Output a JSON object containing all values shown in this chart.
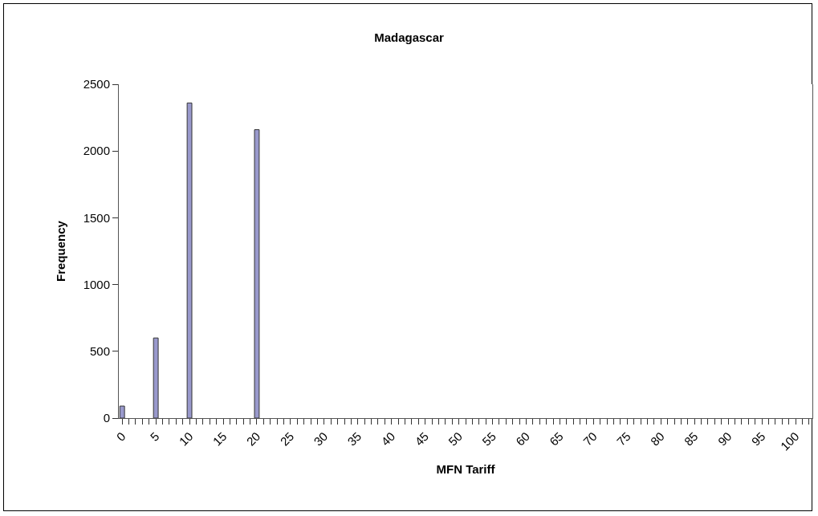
{
  "chart_data": {
    "type": "bar",
    "title": "Madagascar",
    "xlabel": "MFN Tariff",
    "ylabel": "Frequency",
    "categories": [
      "0",
      null,
      null,
      null,
      null,
      "5",
      null,
      null,
      null,
      null,
      "10",
      null,
      null,
      null,
      null,
      "15",
      null,
      null,
      null,
      null,
      "20",
      null,
      null,
      null,
      null,
      "25",
      null,
      null,
      null,
      null,
      "30",
      null,
      null,
      null,
      null,
      "35",
      null,
      null,
      null,
      null,
      "40",
      null,
      null,
      null,
      null,
      "45",
      null,
      null,
      null,
      null,
      "50",
      null,
      null,
      null,
      null,
      "55",
      null,
      null,
      null,
      null,
      "60",
      null,
      null,
      null,
      null,
      "65",
      null,
      null,
      null,
      null,
      "70",
      null,
      null,
      null,
      null,
      "75",
      null,
      null,
      null,
      null,
      "80",
      null,
      null,
      null,
      null,
      "85",
      null,
      null,
      null,
      null,
      "90",
      null,
      null,
      null,
      null,
      "95",
      null,
      null,
      null,
      null,
      "100",
      null,
      null
    ],
    "values": [
      90,
      0,
      0,
      0,
      0,
      600,
      0,
      0,
      0,
      0,
      2360,
      0,
      0,
      0,
      0,
      0,
      0,
      0,
      0,
      0,
      2160,
      0,
      0,
      0,
      0,
      0,
      0,
      0,
      0,
      0,
      0,
      0,
      0,
      0,
      0,
      0,
      0,
      0,
      0,
      0,
      0,
      0,
      0,
      0,
      0,
      0,
      0,
      0,
      0,
      0,
      0,
      0,
      0,
      0,
      0,
      0,
      0,
      0,
      0,
      0,
      0,
      0,
      0,
      0,
      0,
      0,
      0,
      0,
      0,
      0,
      0,
      0,
      0,
      0,
      0,
      0,
      0,
      0,
      0,
      0,
      0,
      0,
      0,
      0,
      0,
      0,
      0,
      0,
      0,
      0,
      0,
      0,
      0,
      0,
      0,
      0,
      0,
      0,
      0,
      0,
      0,
      0,
      0
    ],
    "color": "#9999cc",
    "ylim": [
      0,
      2500
    ],
    "yticks": [
      0,
      500,
      1000,
      1500,
      2000,
      2500
    ],
    "grid": false
  }
}
